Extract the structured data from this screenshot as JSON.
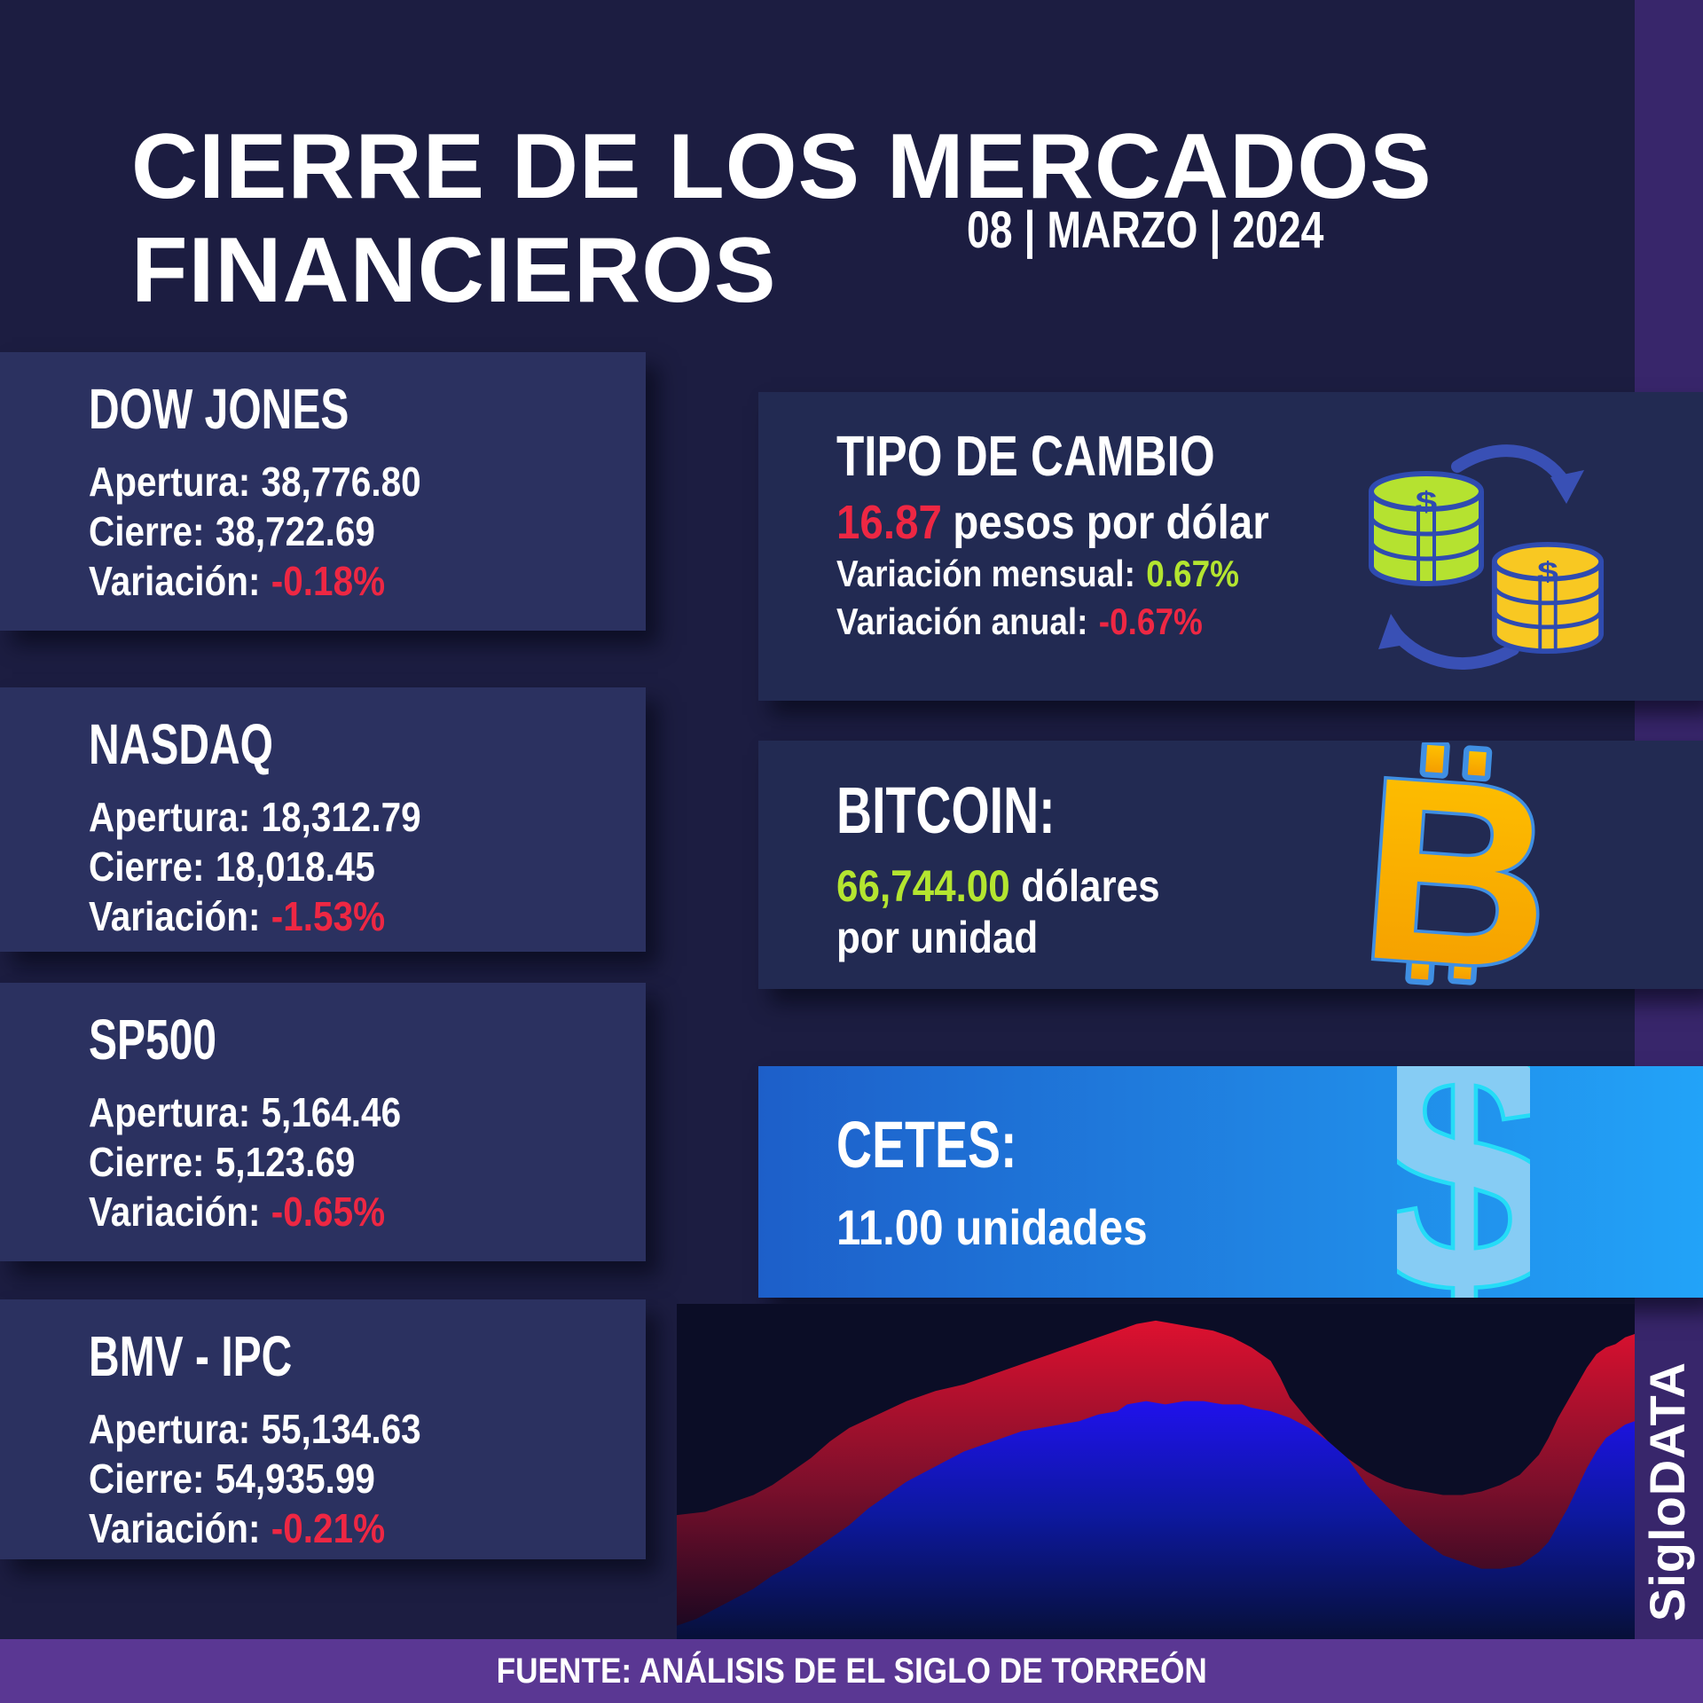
{
  "header": {
    "title_line1": "CIERRE DE LOS MERCADOS",
    "title_line2": "FINANCIEROS",
    "date": "08 | MARZO | 2024"
  },
  "labels": {
    "open": "Apertura:",
    "close": "Cierre:",
    "variation": "Variación:"
  },
  "indices": [
    {
      "name": "DOW JONES",
      "open": "38,776.80",
      "close": "38,722.69",
      "variation": "-0.18%"
    },
    {
      "name": "NASDAQ",
      "open": "18,312.79",
      "close": "18,018.45",
      "variation": "-1.53%"
    },
    {
      "name": "SP500",
      "open": "5,164.46",
      "close": "5,123.69",
      "variation": "-0.65%"
    },
    {
      "name": "BMV - IPC",
      "open": "55,134.63",
      "close": "54,935.99",
      "variation": "-0.21%"
    }
  ],
  "exchange": {
    "title": "TIPO DE CAMBIO",
    "rate": "16.87",
    "rate_unit": "pesos por dólar",
    "monthly_label": "Variación mensual:",
    "monthly": "0.67%",
    "annual_label": "Variación anual:",
    "annual": "-0.67%"
  },
  "bitcoin": {
    "title": "BITCOIN:",
    "price": "66,744.00",
    "price_unit": "dólares",
    "price_unit2": "por unidad",
    "glyph": "B"
  },
  "cetes": {
    "title": "CETES:",
    "value": "11.00 unidades",
    "glyph": "$"
  },
  "icons": {
    "coin_symbol": "$"
  },
  "footer": {
    "source": "FUENTE: ANÁLISIS DE EL SIGLO DE TORREÓN"
  },
  "brand": "SigloDATA",
  "colors": {
    "page_bg": "#1c1d41",
    "panel_left_bg": "#2b3160",
    "panel_right_bg": "#222a52",
    "accent_red": "#ee2743",
    "accent_lime": "#b4e530",
    "text": "#ffffff",
    "rail_purple": "#38266b",
    "footer_purple": "#5a3793",
    "chart_bg": "#0b0d26",
    "cetes_grad": [
      "#1d5fc9",
      "#22a3f8"
    ],
    "btc_grad": [
      "#ffc400",
      "#f49a00"
    ],
    "btc_outline": "#3f8fe3",
    "dollar_fill": "#86ccf4",
    "dollar_outline": "#25dcf7",
    "coin_green": "#b5e230",
    "coin_yellow": "#f8c822",
    "coin_outline": "#2f4bb0",
    "arrow_blue": "#3950b5"
  },
  "chart_data": {
    "type": "area",
    "title": "",
    "xlabel": "",
    "ylabel": "",
    "note": "decorative stacked area chart, no axes or tick labels; values normalized 0-100 (y measured from top)",
    "x_range": [
      0,
      100
    ],
    "y_range": [
      0,
      100
    ],
    "grid": false,
    "legend": false,
    "series": [
      {
        "name": "red",
        "gradient": [
          "#e81130",
          "#7a0f2b",
          "#140720"
        ],
        "points": [
          [
            0,
            63
          ],
          [
            3,
            62
          ],
          [
            5,
            60
          ],
          [
            8,
            57
          ],
          [
            10,
            54
          ],
          [
            12,
            50
          ],
          [
            14,
            46
          ],
          [
            16,
            41
          ],
          [
            18,
            37
          ],
          [
            21,
            33
          ],
          [
            24,
            29
          ],
          [
            27,
            26
          ],
          [
            30,
            24
          ],
          [
            33,
            21
          ],
          [
            36,
            18
          ],
          [
            39,
            15
          ],
          [
            42,
            12
          ],
          [
            44,
            10
          ],
          [
            46,
            8
          ],
          [
            48,
            6
          ],
          [
            50,
            5
          ],
          [
            52,
            6
          ],
          [
            54,
            7
          ],
          [
            56,
            8
          ],
          [
            58,
            10
          ],
          [
            60,
            13
          ],
          [
            62,
            17
          ],
          [
            63,
            22
          ],
          [
            64,
            28
          ],
          [
            66,
            35
          ],
          [
            68,
            41
          ],
          [
            70,
            46
          ],
          [
            72,
            50
          ],
          [
            74,
            53
          ],
          [
            76,
            55
          ],
          [
            78,
            56
          ],
          [
            80,
            57
          ],
          [
            82,
            57
          ],
          [
            84,
            56
          ],
          [
            86,
            54
          ],
          [
            88,
            51
          ],
          [
            90,
            45
          ],
          [
            91,
            40
          ],
          [
            92,
            34
          ],
          [
            93,
            29
          ],
          [
            94,
            24
          ],
          [
            95,
            19
          ],
          [
            96,
            15
          ],
          [
            97,
            13
          ],
          [
            98,
            12
          ],
          [
            99,
            10
          ],
          [
            100,
            9
          ]
        ]
      },
      {
        "name": "blue",
        "gradient": [
          "#2211f5",
          "#0d18a0",
          "#071038"
        ],
        "points": [
          [
            0,
            96
          ],
          [
            2,
            94
          ],
          [
            4,
            91
          ],
          [
            6,
            88
          ],
          [
            8,
            85
          ],
          [
            10,
            81
          ],
          [
            12,
            78
          ],
          [
            14,
            74
          ],
          [
            16,
            70
          ],
          [
            18,
            66
          ],
          [
            20,
            61
          ],
          [
            22,
            57
          ],
          [
            24,
            53
          ],
          [
            26,
            50
          ],
          [
            28,
            47
          ],
          [
            30,
            44
          ],
          [
            32,
            42
          ],
          [
            34,
            40
          ],
          [
            36,
            38
          ],
          [
            38,
            37
          ],
          [
            40,
            36
          ],
          [
            42,
            35
          ],
          [
            44,
            33
          ],
          [
            46,
            32
          ],
          [
            47,
            30
          ],
          [
            49,
            29
          ],
          [
            51,
            30
          ],
          [
            53,
            29
          ],
          [
            55,
            29
          ],
          [
            57,
            30
          ],
          [
            59,
            30
          ],
          [
            60,
            31
          ],
          [
            62,
            32
          ],
          [
            64,
            34
          ],
          [
            66,
            37
          ],
          [
            68,
            41
          ],
          [
            70,
            46
          ],
          [
            71,
            50
          ],
          [
            72,
            54
          ],
          [
            74,
            60
          ],
          [
            76,
            66
          ],
          [
            78,
            71
          ],
          [
            80,
            75
          ],
          [
            82,
            77
          ],
          [
            84,
            79
          ],
          [
            86,
            79
          ],
          [
            88,
            78
          ],
          [
            90,
            74
          ],
          [
            91,
            71
          ],
          [
            92,
            66
          ],
          [
            93,
            61
          ],
          [
            94,
            55
          ],
          [
            95,
            49
          ],
          [
            96,
            44
          ],
          [
            97,
            40
          ],
          [
            98,
            38
          ],
          [
            99,
            36
          ],
          [
            100,
            35
          ]
        ]
      }
    ]
  }
}
